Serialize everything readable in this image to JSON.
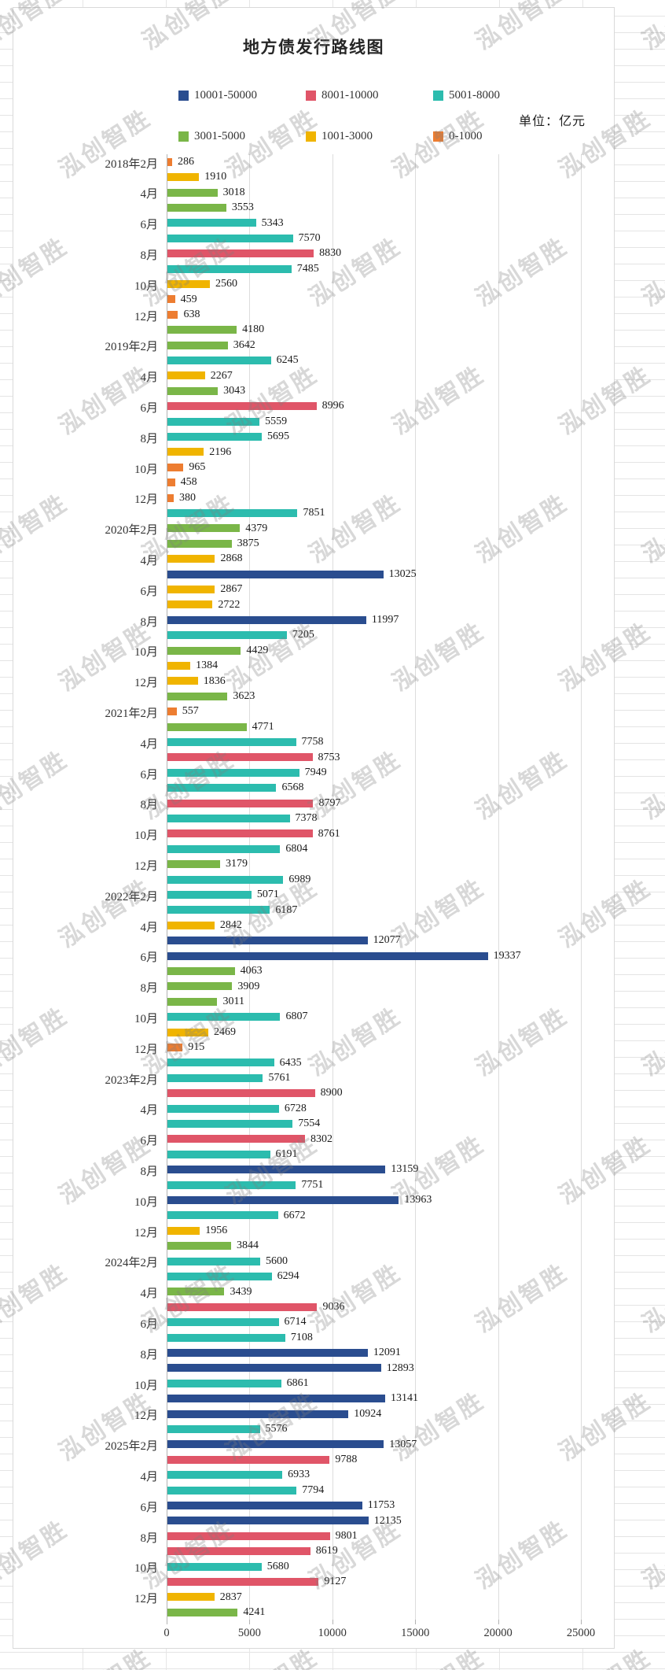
{
  "watermark": {
    "text": "泓创智胜"
  },
  "chart_data": {
    "type": "bar",
    "orientation": "horizontal",
    "title": "地方债发行路线图",
    "unit_label": "单位：亿元",
    "xlabel": "",
    "ylabel": "",
    "xlim": [
      0,
      25000
    ],
    "x_ticks": [
      "0",
      "5000",
      "10000",
      "15000",
      "20000",
      "25000"
    ],
    "grid": true,
    "legend_position": "top",
    "legend": [
      {
        "label": "10001-50000",
        "color": "#2a4d8f",
        "min": 10001,
        "max": 50000
      },
      {
        "label": "8001-10000",
        "color": "#e05568",
        "min": 8001,
        "max": 10000
      },
      {
        "label": "5001-8000",
        "color": "#2cbcae",
        "min": 5001,
        "max": 8000
      },
      {
        "label": "3001-5000",
        "color": "#7ab648",
        "min": 3001,
        "max": 5000
      },
      {
        "label": "1001-3000",
        "color": "#f0b400",
        "min": 1001,
        "max": 3000
      },
      {
        "label": "0-1000",
        "color": "#ed7d31",
        "min": 0,
        "max": 1000
      }
    ],
    "bars": [
      {
        "label": "2018年2月",
        "value": 286
      },
      {
        "label": "",
        "value": 1910
      },
      {
        "label": "4月",
        "value": 3018
      },
      {
        "label": "",
        "value": 3553
      },
      {
        "label": "6月",
        "value": 5343
      },
      {
        "label": "",
        "value": 7570
      },
      {
        "label": "8月",
        "value": 8830
      },
      {
        "label": "",
        "value": 7485
      },
      {
        "label": "10月",
        "value": 2560
      },
      {
        "label": "",
        "value": 459
      },
      {
        "label": "12月",
        "value": 638
      },
      {
        "label": "",
        "value": 4180
      },
      {
        "label": "2019年2月",
        "value": 3642
      },
      {
        "label": "",
        "value": 6245
      },
      {
        "label": "4月",
        "value": 2267
      },
      {
        "label": "",
        "value": 3043
      },
      {
        "label": "6月",
        "value": 8996
      },
      {
        "label": "",
        "value": 5559
      },
      {
        "label": "8月",
        "value": 5695
      },
      {
        "label": "",
        "value": 2196
      },
      {
        "label": "10月",
        "value": 965
      },
      {
        "label": "",
        "value": 458
      },
      {
        "label": "12月",
        "value": 380
      },
      {
        "label": "",
        "value": 7851
      },
      {
        "label": "2020年2月",
        "value": 4379
      },
      {
        "label": "",
        "value": 3875
      },
      {
        "label": "4月",
        "value": 2868
      },
      {
        "label": "",
        "value": 13025
      },
      {
        "label": "6月",
        "value": 2867
      },
      {
        "label": "",
        "value": 2722
      },
      {
        "label": "8月",
        "value": 11997
      },
      {
        "label": "",
        "value": 7205
      },
      {
        "label": "10月",
        "value": 4429
      },
      {
        "label": "",
        "value": 1384
      },
      {
        "label": "12月",
        "value": 1836
      },
      {
        "label": "",
        "value": 3623
      },
      {
        "label": "2021年2月",
        "value": 557
      },
      {
        "label": "",
        "value": 4771
      },
      {
        "label": "4月",
        "value": 7758
      },
      {
        "label": "",
        "value": 8753
      },
      {
        "label": "6月",
        "value": 7949
      },
      {
        "label": "",
        "value": 6568
      },
      {
        "label": "8月",
        "value": 8797
      },
      {
        "label": "",
        "value": 7378
      },
      {
        "label": "10月",
        "value": 8761
      },
      {
        "label": "",
        "value": 6804
      },
      {
        "label": "12月",
        "value": 3179
      },
      {
        "label": "",
        "value": 6989
      },
      {
        "label": "2022年2月",
        "value": 5071
      },
      {
        "label": "",
        "value": 6187
      },
      {
        "label": "4月",
        "value": 2842
      },
      {
        "label": "",
        "value": 12077
      },
      {
        "label": "6月",
        "value": 19337
      },
      {
        "label": "",
        "value": 4063
      },
      {
        "label": "8月",
        "value": 3909
      },
      {
        "label": "",
        "value": 3011
      },
      {
        "label": "10月",
        "value": 6807
      },
      {
        "label": "",
        "value": 2469
      },
      {
        "label": "12月",
        "value": 915
      },
      {
        "label": "",
        "value": 6435
      },
      {
        "label": "2023年2月",
        "value": 5761
      },
      {
        "label": "",
        "value": 8900
      },
      {
        "label": "4月",
        "value": 6728
      },
      {
        "label": "",
        "value": 7554
      },
      {
        "label": "6月",
        "value": 8302
      },
      {
        "label": "",
        "value": 6191
      },
      {
        "label": "8月",
        "value": 13159
      },
      {
        "label": "",
        "value": 7751
      },
      {
        "label": "10月",
        "value": 13963
      },
      {
        "label": "",
        "value": 6672
      },
      {
        "label": "12月",
        "value": 1956
      },
      {
        "label": "",
        "value": 3844
      },
      {
        "label": "2024年2月",
        "value": 5600
      },
      {
        "label": "",
        "value": 6294
      },
      {
        "label": "4月",
        "value": 3439
      },
      {
        "label": "",
        "value": 9036
      },
      {
        "label": "6月",
        "value": 6714
      },
      {
        "label": "",
        "value": 7108
      },
      {
        "label": "8月",
        "value": 12091
      },
      {
        "label": "",
        "value": 12893
      },
      {
        "label": "10月",
        "value": 6861
      },
      {
        "label": "",
        "value": 13141
      },
      {
        "label": "12月",
        "value": 10924
      },
      {
        "label": "",
        "value": 5576
      },
      {
        "label": "2025年2月",
        "value": 13057
      },
      {
        "label": "",
        "value": 9788
      },
      {
        "label": "4月",
        "value": 6933
      },
      {
        "label": "",
        "value": 7794
      },
      {
        "label": "6月",
        "value": 11753
      },
      {
        "label": "",
        "value": 12135
      },
      {
        "label": "8月",
        "value": 9801
      },
      {
        "label": "",
        "value": 8619
      },
      {
        "label": "10月",
        "value": 5680
      },
      {
        "label": "",
        "value": 9127
      },
      {
        "label": "12月",
        "value": 2837
      },
      {
        "label": "",
        "value": 4241
      }
    ]
  }
}
